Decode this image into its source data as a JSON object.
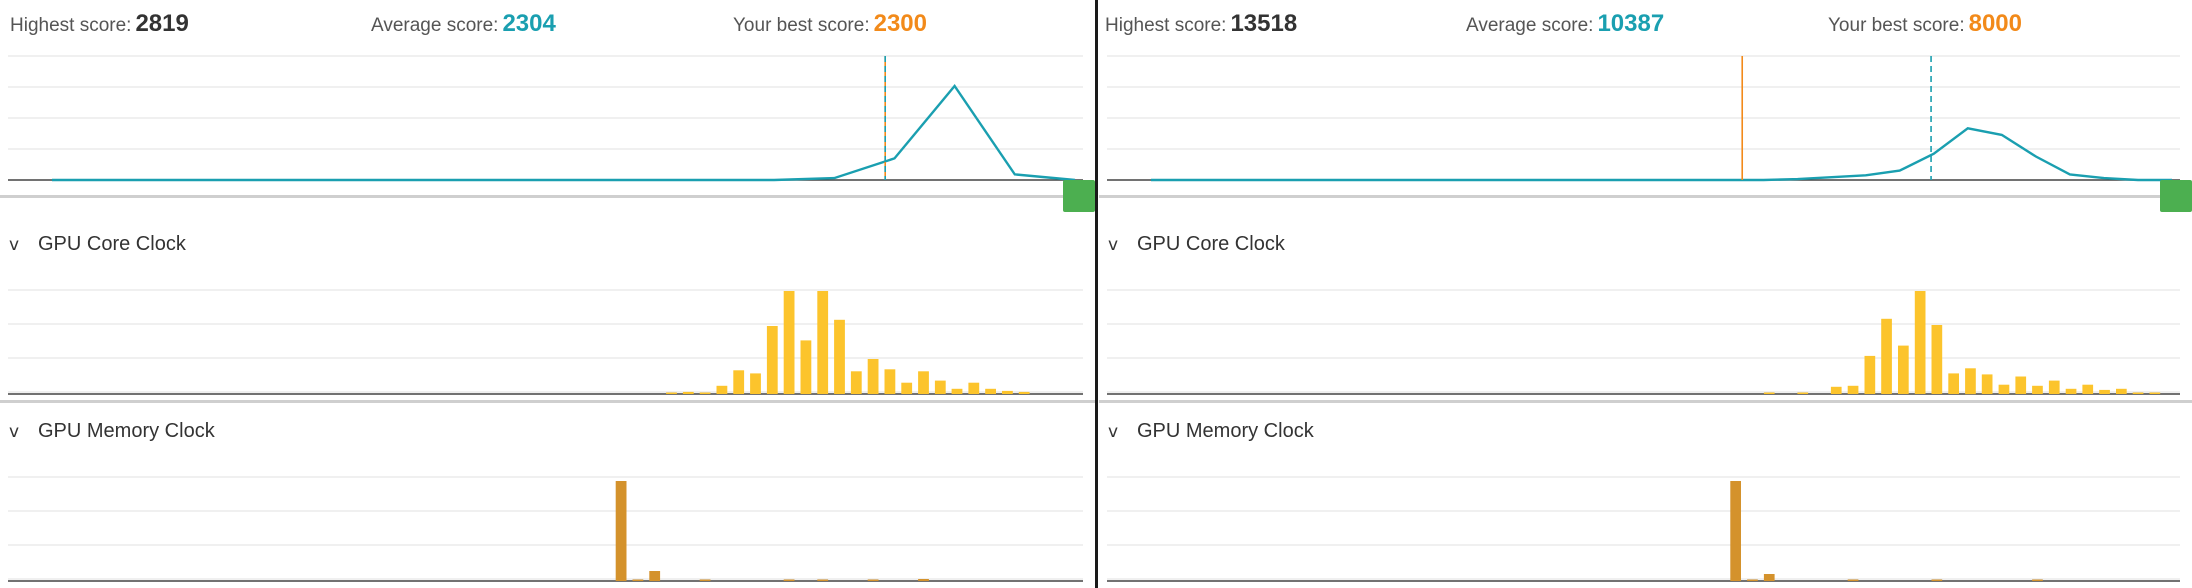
{
  "colors": {
    "distribution": "#1a9fb0",
    "core_bars": "#fcc42c",
    "memory_bars": "#d4922c",
    "best_line": "#f28a1a",
    "handle": "#4caf50"
  },
  "panels": [
    {
      "highest_label": "Highest score:",
      "highest": "2819",
      "average_label": "Average score:",
      "average": "2304",
      "best_label": "Your best score:",
      "best": "2300",
      "score_max": 2819,
      "distribution": [
        0,
        0,
        0,
        0,
        0,
        0,
        0,
        0,
        0,
        0,
        0,
        0,
        0,
        0.02,
        0.23,
        1,
        0.06,
        0
      ],
      "average_marker": 0.816,
      "best_marker": 0.816,
      "core_section": {
        "title": "GPU Core Clock",
        "chevron": "v"
      },
      "memory_section": {
        "title": "GPU Memory Clock",
        "chevron": "v"
      },
      "core_bars": [
        0,
        0,
        0,
        0,
        0,
        0,
        0,
        0,
        0,
        0,
        0,
        0,
        0,
        0,
        0,
        0,
        0,
        0,
        0,
        0,
        0,
        0,
        0,
        0,
        0,
        0,
        0,
        0,
        0,
        0,
        0,
        0,
        0,
        0,
        0,
        0,
        0,
        0,
        0,
        0.01,
        0.02,
        0.01,
        0.08,
        0.23,
        0.2,
        0.66,
        1,
        0.52,
        1,
        0.72,
        0.22,
        0.34,
        0.24,
        0.11,
        0.22,
        0.13,
        0.05,
        0.11,
        0.05,
        0.03,
        0.02,
        0,
        0,
        0
      ],
      "memory_bars": [
        0,
        0,
        0,
        0,
        0,
        0,
        0,
        0,
        0,
        0,
        0,
        0,
        0,
        0,
        0,
        0,
        0,
        0,
        0,
        0,
        0,
        0,
        0,
        0,
        0,
        0,
        0,
        0,
        0,
        0,
        0,
        0,
        0,
        0,
        0,
        0,
        1,
        0.01,
        0.1,
        0,
        0,
        0.01,
        0,
        0,
        0,
        0,
        0.01,
        0,
        0.01,
        0,
        0,
        0.01,
        0,
        0,
        0.02,
        0,
        0,
        0,
        0,
        0,
        0,
        0,
        0,
        0
      ]
    },
    {
      "highest_label": "Highest score:",
      "highest": "13518",
      "average_label": "Average score:",
      "average": "10387",
      "best_label": "Your best score:",
      "best": "8000",
      "score_max": 13518,
      "distribution": [
        0,
        0,
        0,
        0,
        0,
        0,
        0,
        0,
        0,
        0,
        0,
        0,
        0,
        0,
        0,
        0,
        0,
        0,
        0,
        0.01,
        0.03,
        0.05,
        0.1,
        0.28,
        0.55,
        0.48,
        0.25,
        0.06,
        0.02,
        0,
        0
      ],
      "average_marker": 0.768,
      "best_marker": 0.592,
      "core_section": {
        "title": "GPU Core Clock",
        "chevron": "v"
      },
      "memory_section": {
        "title": "GPU Memory Clock",
        "chevron": "v"
      },
      "core_bars": [
        0,
        0,
        0,
        0,
        0,
        0,
        0,
        0,
        0,
        0,
        0,
        0,
        0,
        0,
        0,
        0,
        0,
        0,
        0,
        0,
        0,
        0,
        0,
        0,
        0,
        0,
        0,
        0,
        0,
        0,
        0,
        0,
        0,
        0,
        0,
        0,
        0,
        0,
        0,
        0.01,
        0,
        0.01,
        0,
        0.07,
        0.08,
        0.37,
        0.73,
        0.47,
        1,
        0.67,
        0.2,
        0.25,
        0.19,
        0.09,
        0.17,
        0.08,
        0.13,
        0.05,
        0.09,
        0.04,
        0.05,
        0.01,
        0.01,
        0
      ],
      "memory_bars": [
        0,
        0,
        0,
        0,
        0,
        0,
        0,
        0,
        0,
        0,
        0,
        0,
        0,
        0,
        0,
        0,
        0,
        0,
        0,
        0,
        0,
        0,
        0,
        0,
        0,
        0,
        0,
        0,
        0,
        0,
        0,
        0,
        0,
        0,
        0,
        0,
        0,
        1,
        0.01,
        0.07,
        0,
        0,
        0,
        0,
        0.01,
        0,
        0,
        0,
        0,
        0.01,
        0,
        0,
        0,
        0,
        0,
        0.01,
        0,
        0,
        0,
        0,
        0,
        0,
        0,
        0
      ]
    }
  ]
}
